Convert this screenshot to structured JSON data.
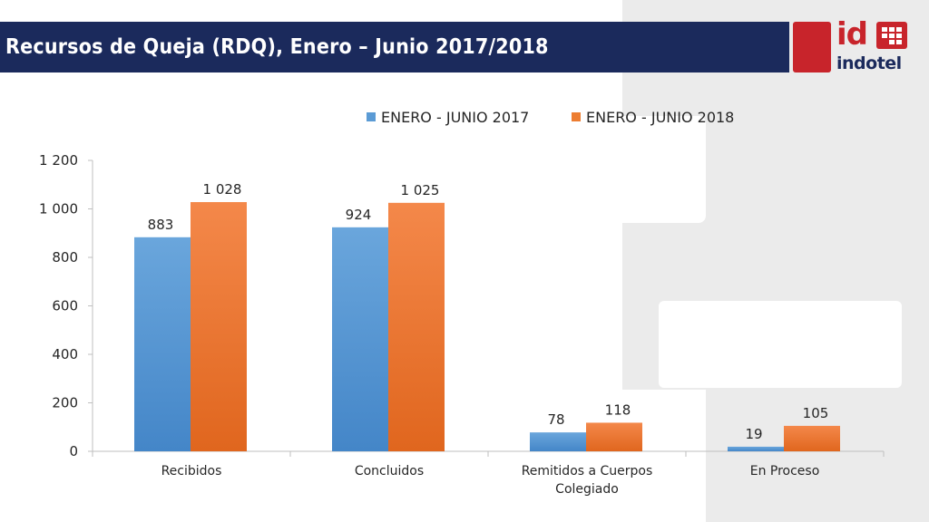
{
  "header": {
    "title": "Recursos de Queja (RDQ), Enero – Junio 2017/2018",
    "logo_id": "id",
    "logo_word": "indotel"
  },
  "chart_data": {
    "type": "bar",
    "categories": [
      "Recibidos",
      "Concluidos",
      "Remitidos a Cuerpos Colegiado",
      "En Proceso"
    ],
    "category_lines": [
      [
        "Recibidos"
      ],
      [
        "Concluidos"
      ],
      [
        "Remitidos a Cuerpos",
        "Colegiado"
      ],
      [
        "En Proceso"
      ]
    ],
    "series": [
      {
        "name": "ENERO - JUNIO 2017",
        "values": [
          883,
          924,
          78,
          19
        ],
        "labels": [
          "883",
          "924",
          "78",
          "19"
        ],
        "color": "#5b9bd5"
      },
      {
        "name": "ENERO - JUNIO 2018",
        "values": [
          1028,
          1025,
          118,
          105
        ],
        "labels": [
          "1 028",
          "1 025",
          "118",
          "105"
        ],
        "color": "#ed7d31"
      }
    ],
    "yticks": [
      0,
      200,
      400,
      600,
      800,
      1000,
      1200
    ],
    "ytick_labels": [
      "0",
      "200",
      "400",
      "600",
      "800",
      "1 000",
      "1 200"
    ],
    "ylim": [
      0,
      1200
    ],
    "grid": false,
    "legend": "top"
  },
  "colors": {
    "title_bar": "#1b2a5c",
    "brand_red": "#c8242b",
    "series_2017": "#5b9bd5",
    "series_2018": "#ed7d31"
  }
}
